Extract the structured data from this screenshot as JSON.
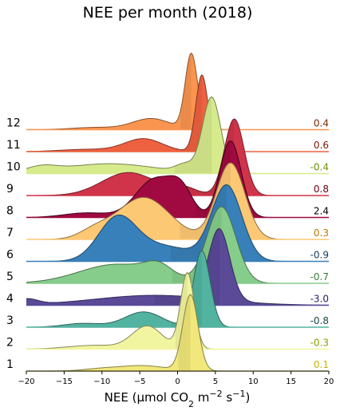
{
  "chart_data": {
    "type": "ridgeline",
    "title": "NEE per month (2018)",
    "xlabel_parts": [
      "NEE (µmol CO",
      "2",
      " m",
      "−2",
      " s",
      "−1",
      ")"
    ],
    "xlim": [
      -20,
      20
    ],
    "xticks": [
      -20,
      -15,
      -10,
      -5,
      0,
      5,
      10,
      15,
      20
    ],
    "xtick_labels": [
      "−20",
      "−15",
      "−10",
      "−5",
      "0",
      "5",
      "10",
      "15",
      "20"
    ],
    "series": [
      {
        "month": "1",
        "mean": 0.1,
        "mean_label": "0.1",
        "color": "#f1e77a",
        "label_color": "#c8b400",
        "peak": 1.0,
        "components": [
          [
            1.7,
            1.0,
            1.0
          ],
          [
            -4.5,
            3.0,
            0.07
          ],
          [
            -10.0,
            2.5,
            0.03
          ]
        ]
      },
      {
        "month": "2",
        "mean": -0.3,
        "mean_label": "-0.3",
        "color": "#f2f5a0",
        "label_color": "#8aa000",
        "peak": 1.0,
        "components": [
          [
            1.3,
            0.9,
            1.0
          ],
          [
            -4.0,
            2.0,
            0.3
          ],
          [
            -11.0,
            3.5,
            0.05
          ]
        ]
      },
      {
        "month": "3",
        "mean": -0.8,
        "mean_label": "-0.8",
        "color": "#52b3a0",
        "label_color": "#1a4a48",
        "peak": 1.0,
        "components": [
          [
            3.2,
            1.1,
            1.0
          ],
          [
            -4.5,
            2.5,
            0.2
          ],
          [
            -12.5,
            2.5,
            0.05
          ]
        ]
      },
      {
        "month": "4",
        "mean": -3.0,
        "mean_label": "-3.0",
        "color": "#5a4a98",
        "label_color": "#2a1e60",
        "peak": 1.0,
        "components": [
          [
            5.5,
            1.4,
            1.0
          ],
          [
            -3.0,
            8.0,
            0.14
          ],
          [
            -20.0,
            1.5,
            0.08
          ]
        ]
      },
      {
        "month": "5",
        "mean": -0.7,
        "mean_label": "-0.7",
        "color": "#86cc8a",
        "label_color": "#3a7a3c",
        "peak": 1.0,
        "components": [
          [
            5.8,
            1.9,
            1.0
          ],
          [
            -8.0,
            5.0,
            0.25
          ],
          [
            -2.5,
            1.8,
            0.15
          ]
        ]
      },
      {
        "month": "6",
        "mean": -0.9,
        "mean_label": "-0.9",
        "color": "#3880ba",
        "label_color": "#1a3a60",
        "peak": 1.0,
        "components": [
          [
            6.5,
            2.0,
            1.0
          ],
          [
            -8.0,
            2.5,
            0.55
          ],
          [
            -2.0,
            4.0,
            0.2
          ]
        ]
      },
      {
        "month": "7",
        "mean": 0.3,
        "mean_label": "0.3",
        "color": "#fdc874",
        "label_color": "#b87a00",
        "peak": 1.0,
        "components": [
          [
            7.0,
            1.9,
            1.0
          ],
          [
            -4.5,
            3.5,
            0.55
          ],
          [
            -11.0,
            2.0,
            0.1
          ]
        ]
      },
      {
        "month": "8",
        "mean": 2.4,
        "mean_label": "2.4",
        "color": "#a00a40",
        "label_color": "#000000",
        "peak": 1.0,
        "components": [
          [
            7.0,
            1.4,
            1.0
          ],
          [
            -3.0,
            2.5,
            0.5
          ],
          [
            0.5,
            1.5,
            0.3
          ],
          [
            -12.0,
            3.0,
            0.06
          ]
        ]
      },
      {
        "month": "9",
        "mean": 0.8,
        "mean_label": "0.8",
        "color": "#d0344a",
        "label_color": "#6a0010",
        "peak": 1.0,
        "components": [
          [
            7.5,
            1.3,
            1.0
          ],
          [
            -6.5,
            3.5,
            0.3
          ],
          [
            0.5,
            2.0,
            0.1
          ]
        ]
      },
      {
        "month": "10",
        "mean": -0.4,
        "mean_label": "-0.4",
        "color": "#d6eb8c",
        "label_color": "#6a9000",
        "peak": 1.0,
        "components": [
          [
            4.5,
            1.2,
            1.0
          ],
          [
            -9.0,
            6.0,
            0.13
          ],
          [
            -18.0,
            2.0,
            0.07
          ],
          [
            1.0,
            1.2,
            0.1
          ]
        ]
      },
      {
        "month": "11",
        "mean": 0.6,
        "mean_label": "0.6",
        "color": "#ee6140",
        "label_color": "#7a1800",
        "peak": 1.0,
        "components": [
          [
            3.2,
            0.8,
            1.0
          ],
          [
            -4.5,
            2.5,
            0.17
          ],
          [
            -12.0,
            3.5,
            0.03
          ],
          [
            5.0,
            1.0,
            0.08
          ]
        ]
      },
      {
        "month": "12",
        "mean": 0.4,
        "mean_label": "0.4",
        "color": "#fa9550",
        "label_color": "#7a2a00",
        "peak": 1.0,
        "components": [
          [
            1.8,
            0.8,
            1.0
          ],
          [
            -3.5,
            2.5,
            0.15
          ],
          [
            -11.0,
            3.0,
            0.03
          ],
          [
            3.5,
            1.0,
            0.08
          ]
        ]
      }
    ]
  }
}
